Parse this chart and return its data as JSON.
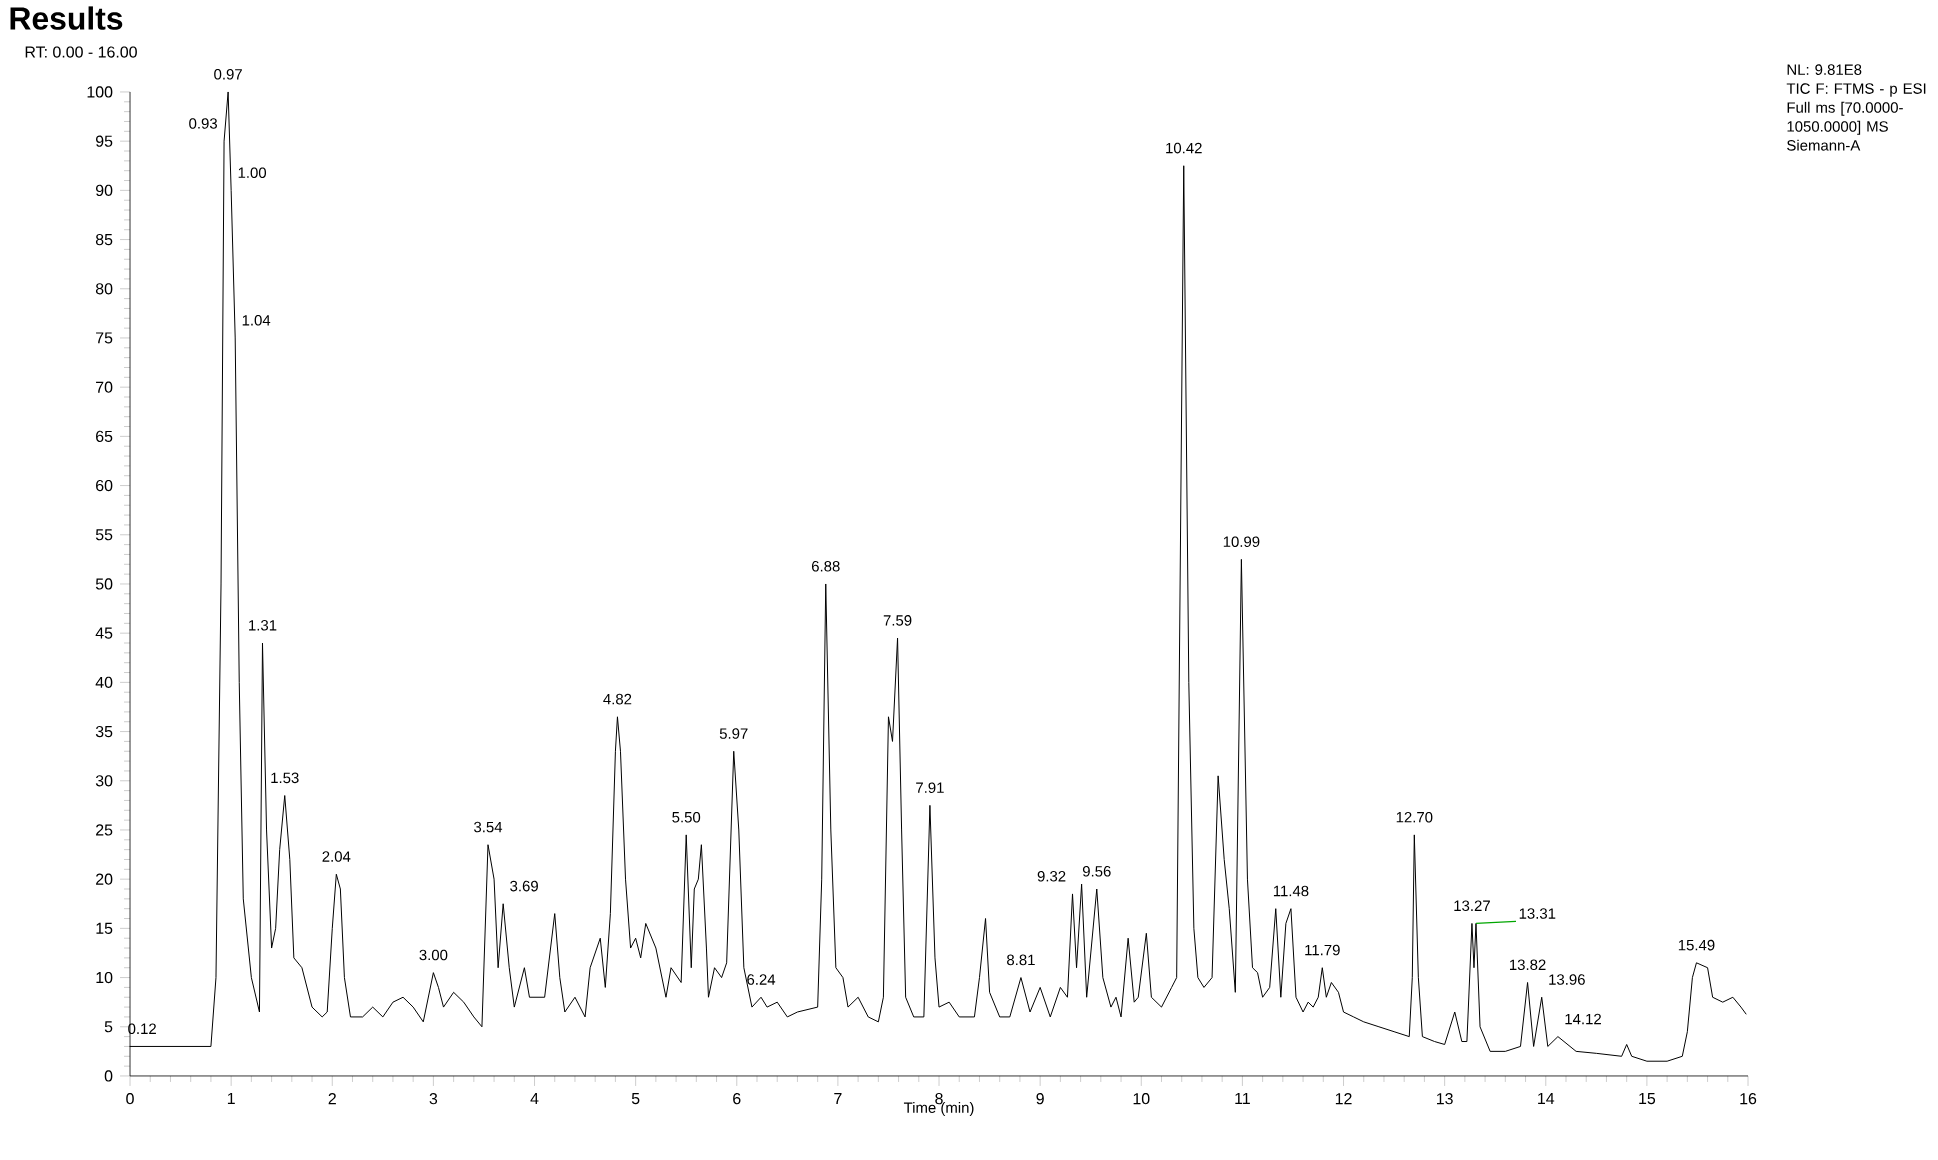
{
  "chart_data": {
    "type": "line",
    "title": "Results",
    "subtitle": "RT: 0.00 - 16.00",
    "xlabel": "Time (min)",
    "color": "#000000",
    "x": [
      0,
      0.4,
      0.8,
      0.85,
      0.9,
      0.93,
      0.97,
      1.0,
      1.04,
      1.08,
      1.12,
      1.2,
      1.28,
      1.31,
      1.35,
      1.4,
      1.44,
      1.48,
      1.53,
      1.58,
      1.62,
      1.7,
      1.8,
      1.9,
      1.95,
      2.0,
      2.04,
      2.08,
      2.12,
      2.18,
      2.3,
      2.4,
      2.5,
      2.6,
      2.7,
      2.8,
      2.9,
      3.0,
      3.05,
      3.1,
      3.2,
      3.3,
      3.4,
      3.48,
      3.54,
      3.6,
      3.64,
      3.69,
      3.75,
      3.8,
      3.9,
      3.95,
      4.1,
      4.2,
      4.25,
      4.3,
      4.4,
      4.5,
      4.55,
      4.65,
      4.7,
      4.75,
      4.8,
      4.82,
      4.85,
      4.9,
      4.95,
      5.0,
      5.05,
      5.1,
      5.2,
      5.3,
      5.35,
      5.45,
      5.5,
      5.55,
      5.58,
      5.62,
      5.65,
      5.7,
      5.72,
      5.78,
      5.85,
      5.9,
      5.97,
      6.02,
      6.07,
      6.15,
      6.24,
      6.3,
      6.4,
      6.5,
      6.6,
      6.8,
      6.84,
      6.88,
      6.93,
      6.98,
      7.05,
      7.1,
      7.2,
      7.3,
      7.4,
      7.45,
      7.5,
      7.54,
      7.59,
      7.63,
      7.67,
      7.75,
      7.85,
      7.91,
      7.96,
      8.0,
      8.1,
      8.2,
      8.35,
      8.4,
      8.46,
      8.5,
      8.6,
      8.7,
      8.81,
      8.9,
      9.0,
      9.1,
      9.2,
      9.27,
      9.32,
      9.36,
      9.41,
      9.46,
      9.56,
      9.62,
      9.7,
      9.75,
      9.8,
      9.87,
      9.93,
      9.97,
      10.05,
      10.1,
      10.2,
      10.3,
      10.35,
      10.42,
      10.47,
      10.52,
      10.56,
      10.62,
      10.7,
      10.76,
      10.82,
      10.87,
      10.93,
      10.99,
      11.05,
      11.1,
      11.15,
      11.2,
      11.27,
      11.33,
      11.38,
      11.43,
      11.48,
      11.53,
      11.6,
      11.65,
      11.7,
      11.75,
      11.79,
      11.83,
      11.88,
      11.95,
      12.0,
      12.1,
      12.2,
      12.35,
      12.5,
      12.65,
      12.68,
      12.7,
      12.74,
      12.78,
      12.9,
      13.0,
      13.1,
      13.17,
      13.22,
      13.27,
      13.29,
      13.31,
      13.35,
      13.45,
      13.6,
      13.75,
      13.82,
      13.88,
      13.96,
      14.02,
      14.12,
      14.3,
      14.5,
      14.75,
      14.8,
      14.85,
      15.0,
      15.2,
      15.35,
      15.4,
      15.45,
      15.49,
      15.6,
      15.65,
      15.75,
      15.85,
      15.93,
      15.98
    ],
    "values": [
      3,
      3,
      3,
      10,
      50,
      95,
      100,
      90,
      75,
      40,
      18,
      10,
      6.5,
      44,
      25,
      13,
      15,
      23,
      28.5,
      22,
      12,
      11,
      7,
      6,
      6.5,
      15,
      20.5,
      19,
      10,
      6,
      6,
      7,
      6,
      7.5,
      8,
      7,
      5.5,
      10.5,
      9,
      7,
      8.5,
      7.5,
      6,
      5,
      23.5,
      20,
      11,
      17.5,
      11,
      7,
      11,
      8,
      8,
      16.5,
      10,
      6.5,
      8,
      6,
      11,
      14,
      9,
      16.5,
      33,
      36.5,
      33,
      20,
      13,
      14,
      12,
      15.5,
      13,
      8,
      11,
      9.5,
      24.5,
      11,
      19,
      20,
      23.5,
      13,
      8,
      11,
      10,
      11.5,
      33,
      25,
      11,
      7,
      8,
      7,
      7.5,
      6,
      6.5,
      7,
      20,
      50,
      25,
      11,
      10,
      7,
      8,
      6,
      5.5,
      8,
      36.5,
      34,
      44.5,
      25,
      8,
      6,
      6,
      27.5,
      12,
      7,
      7.5,
      6,
      6,
      10,
      16,
      8.5,
      6,
      6,
      10,
      6.5,
      9,
      6,
      9,
      8,
      18.5,
      11,
      19.5,
      8,
      19,
      10,
      7,
      8,
      6,
      14,
      7.5,
      8,
      14.5,
      8,
      7,
      9,
      10,
      92.5,
      40,
      15,
      10,
      9,
      10,
      30.5,
      22,
      17,
      8.5,
      52.5,
      20,
      11,
      10.5,
      8,
      9,
      17,
      8,
      15.5,
      17,
      8,
      6.5,
      7.5,
      7,
      8,
      11,
      8,
      9.5,
      8.5,
      6.5,
      6,
      5.5,
      5,
      4.5,
      4,
      10,
      24.5,
      10,
      4,
      3.5,
      3.2,
      6.5,
      3.5,
      3.5,
      15.5,
      11,
      15.5,
      5,
      2.5,
      2.5,
      3,
      9.5,
      3,
      8,
      3,
      4,
      2.5,
      2.3,
      2,
      3.2,
      2,
      1.5,
      1.5,
      2,
      4.5,
      10,
      11.5,
      11,
      8,
      7.5,
      8,
      7,
      6.3
    ],
    "xlim": [
      0,
      16
    ],
    "ylim": [
      0,
      100
    ],
    "xticks": [
      0,
      1,
      2,
      3,
      4,
      5,
      6,
      7,
      8,
      9,
      10,
      11,
      12,
      13,
      14,
      15,
      16
    ],
    "yticks": [
      0,
      5,
      10,
      15,
      20,
      25,
      30,
      35,
      40,
      45,
      50,
      55,
      60,
      65,
      70,
      75,
      80,
      85,
      90,
      95,
      100
    ],
    "annotations": [
      {
        "text": "0.12",
        "x": 0.12,
        "y": 3
      },
      {
        "text": "0.93",
        "x": 0.93,
        "y": 95
      },
      {
        "text": "0.97",
        "x": 0.97,
        "y": 100
      },
      {
        "text": "1.00",
        "x": 1.0,
        "y": 90
      },
      {
        "text": "1.04",
        "x": 1.04,
        "y": 75
      },
      {
        "text": "1.31",
        "x": 1.31,
        "y": 44
      },
      {
        "text": "1.53",
        "x": 1.53,
        "y": 28.5
      },
      {
        "text": "2.04",
        "x": 2.04,
        "y": 20.5
      },
      {
        "text": "3.00",
        "x": 3.0,
        "y": 10.5
      },
      {
        "text": "3.54",
        "x": 3.54,
        "y": 23.5
      },
      {
        "text": "3.69",
        "x": 3.69,
        "y": 17.5
      },
      {
        "text": "4.82",
        "x": 4.82,
        "y": 36.5
      },
      {
        "text": "5.50",
        "x": 5.5,
        "y": 24.5
      },
      {
        "text": "5.97",
        "x": 5.97,
        "y": 33
      },
      {
        "text": "6.24",
        "x": 6.24,
        "y": 8
      },
      {
        "text": "6.88",
        "x": 6.88,
        "y": 50
      },
      {
        "text": "7.59",
        "x": 7.59,
        "y": 44.5
      },
      {
        "text": "7.91",
        "x": 7.91,
        "y": 27.5
      },
      {
        "text": "8.81",
        "x": 8.81,
        "y": 10
      },
      {
        "text": "9.32",
        "x": 9.32,
        "y": 18.5
      },
      {
        "text": "9.56",
        "x": 9.56,
        "y": 19
      },
      {
        "text": "10.42",
        "x": 10.42,
        "y": 92.5
      },
      {
        "text": "10.99",
        "x": 10.99,
        "y": 52.5
      },
      {
        "text": "11.48",
        "x": 11.48,
        "y": 17
      },
      {
        "text": "11.79",
        "x": 11.79,
        "y": 11
      },
      {
        "text": "12.70",
        "x": 12.7,
        "y": 24.5
      },
      {
        "text": "13.27",
        "x": 13.27,
        "y": 15.5
      },
      {
        "text": "13.31",
        "x": 13.31,
        "y": 15.5
      },
      {
        "text": "13.82",
        "x": 13.82,
        "y": 9.5
      },
      {
        "text": "13.96",
        "x": 13.96,
        "y": 8
      },
      {
        "text": "14.12",
        "x": 14.12,
        "y": 4
      },
      {
        "text": "15.49",
        "x": 15.49,
        "y": 11.5
      },
      "NL: 9.81E8",
      "TIC F: FTMS - p ESI Full ms [70.0000-1050.0000] MS",
      "Siemann-A"
    ]
  }
}
